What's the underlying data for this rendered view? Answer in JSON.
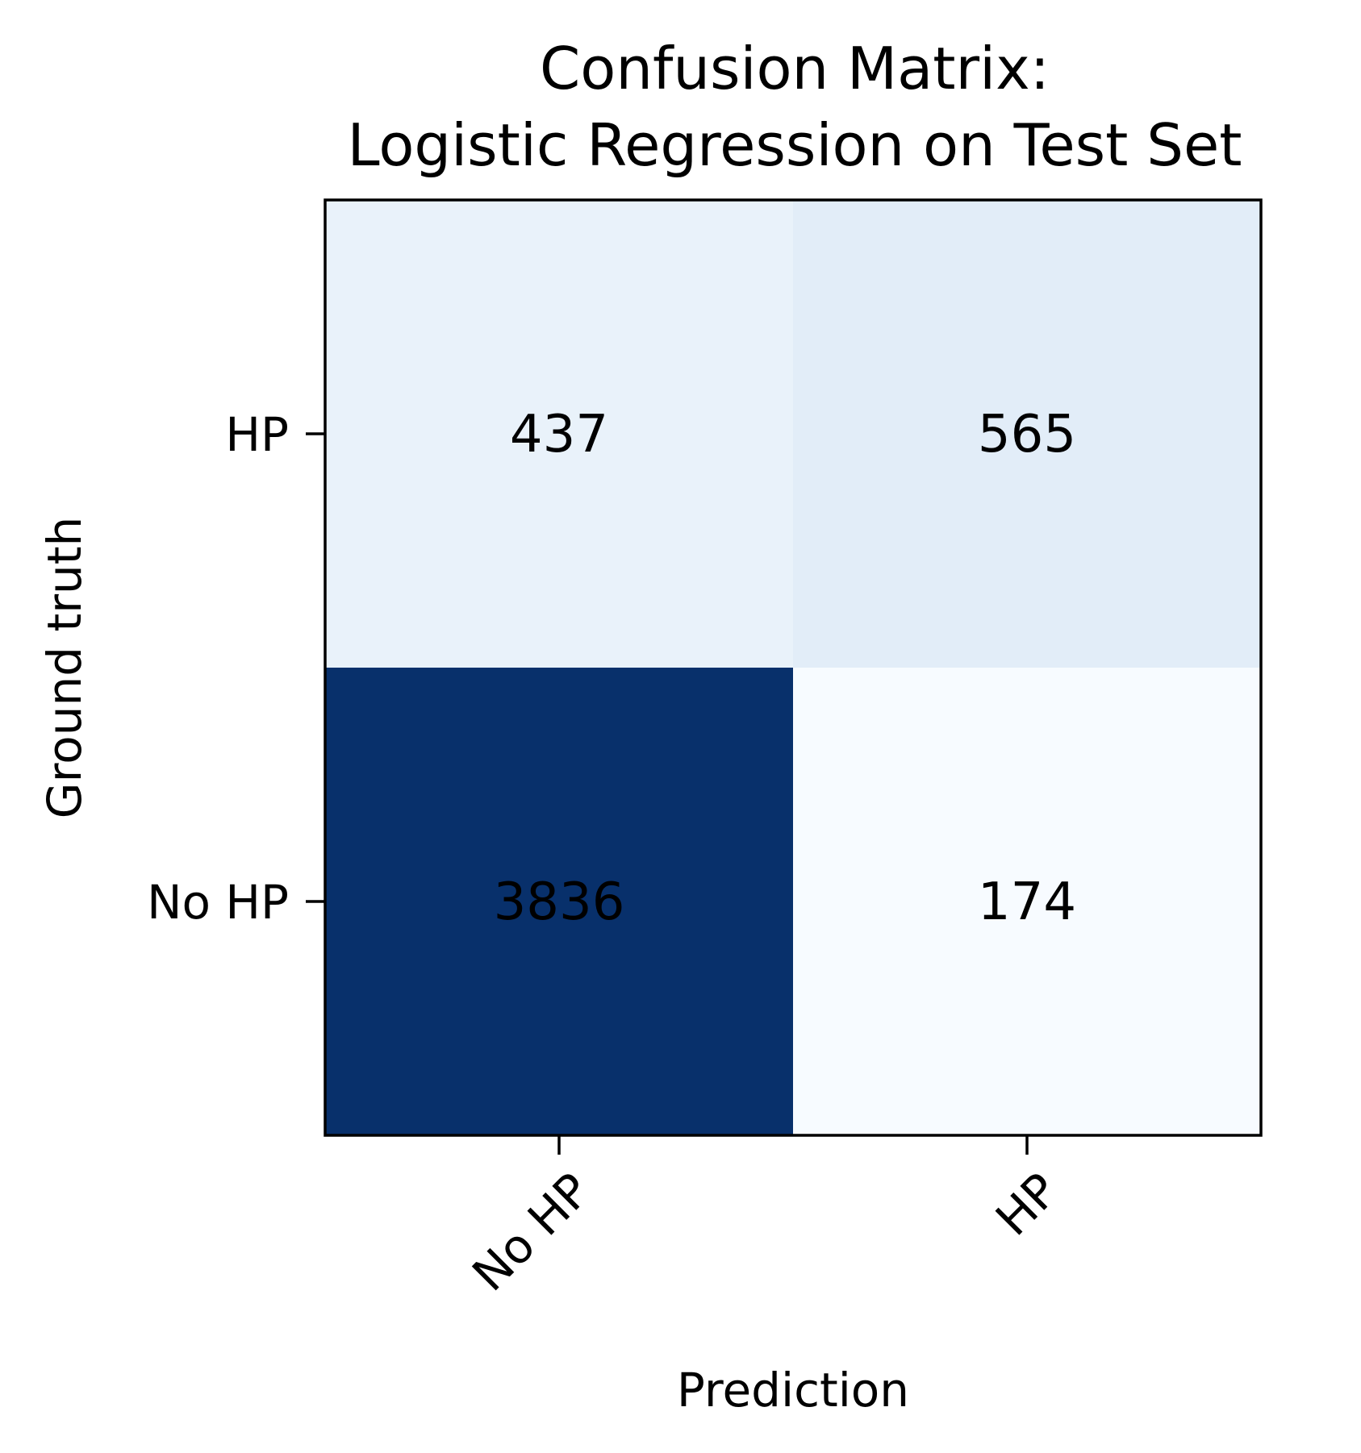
{
  "chart_data": {
    "type": "heatmap",
    "title_lines": [
      "Confusion Matrix:",
      "Logistic Regression on Test Set"
    ],
    "xlabel": "Prediction",
    "ylabel": "Ground truth",
    "x_categories": [
      "No HP",
      "HP"
    ],
    "y_categories": [
      "HP",
      "No HP"
    ],
    "cells": [
      {
        "row": 0,
        "col": 0,
        "truth": "HP",
        "prediction": "No HP",
        "value": 437
      },
      {
        "row": 0,
        "col": 1,
        "truth": "HP",
        "prediction": "HP",
        "value": 565
      },
      {
        "row": 1,
        "col": 0,
        "truth": "No HP",
        "prediction": "No HP",
        "value": 3836
      },
      {
        "row": 1,
        "col": 1,
        "truth": "No HP",
        "prediction": "HP",
        "value": 174
      }
    ],
    "colormap": "Blues",
    "color_min": 174,
    "color_max": 3836,
    "colorbar": false,
    "grid": false,
    "legend": false
  }
}
